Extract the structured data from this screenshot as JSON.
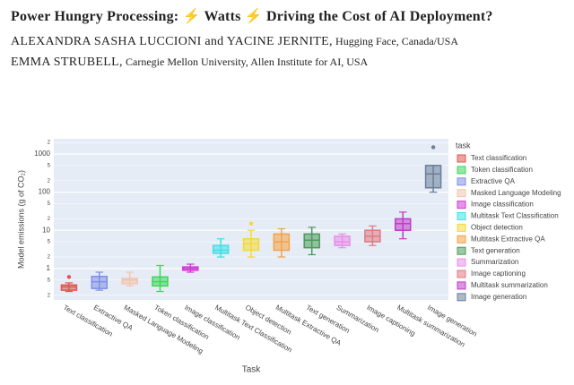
{
  "header": {
    "title": "Power Hungry Processing: ⚡ Watts ⚡ Driving the Cost of AI Deployment?",
    "authors": [
      {
        "names": "ALEXANDRA SASHA LUCCIONI and YACINE JERNITE,",
        "affiliation": "Hugging Face, Canada/USA"
      },
      {
        "names": "EMMA STRUBELL,",
        "affiliation": "Carnegie Mellon University, Allen Institute for AI, USA"
      }
    ]
  },
  "chart_data": {
    "type": "box",
    "x_label": "Task",
    "y_label": "Model emissions (g of CO₂)",
    "legend_title": "task",
    "y_scale": "log",
    "ylim": [
      0.15,
      2500
    ],
    "grid": true,
    "legend": "right",
    "yticks": [
      {
        "value": 0.2,
        "label": "2"
      },
      {
        "value": 0.5,
        "label": "5"
      },
      1,
      {
        "value": 2,
        "label": "2"
      },
      {
        "value": 5,
        "label": "5"
      },
      10,
      {
        "value": 20,
        "label": "2"
      },
      {
        "value": 50,
        "label": "5"
      },
      100,
      {
        "value": 200,
        "label": "2"
      },
      {
        "value": 500,
        "label": "5"
      },
      1000,
      {
        "value": 2000,
        "label": "2"
      }
    ],
    "categories": [
      "Text classification",
      "Extractive QA",
      "Masked Language Modeling",
      "Token classification",
      "Image classification",
      "Multitask Text Classification",
      "Object detection",
      "Multitask Extractive QA",
      "Text generation",
      "Summarization",
      "Image captioning",
      "Multitask summarization",
      "Image generation"
    ],
    "series": [
      {
        "name": "Text classification",
        "color": "#e0574f",
        "min": 0.25,
        "q1": 0.27,
        "median": 0.33,
        "q3": 0.37,
        "max": 0.42,
        "outliers": [
          0.6
        ]
      },
      {
        "name": "Token classification",
        "color": "#3fd65a",
        "min": 0.25,
        "q1": 0.35,
        "median": 0.45,
        "q3": 0.6,
        "max": 1.2,
        "outliers": []
      },
      {
        "name": "Extractive QA",
        "color": "#7f8fe6",
        "min": 0.27,
        "q1": 0.3,
        "median": 0.45,
        "q3": 0.62,
        "max": 0.8,
        "outliers": []
      },
      {
        "name": "Masked Language Modeling",
        "color": "#f4c4ae",
        "min": 0.35,
        "q1": 0.4,
        "median": 0.5,
        "q3": 0.55,
        "max": 0.8,
        "outliers": []
      },
      {
        "name": "Image classification",
        "color": "#d43ad4",
        "min": 0.8,
        "q1": 0.9,
        "median": 1.0,
        "q3": 1.1,
        "max": 1.3,
        "outliers": []
      },
      {
        "name": "Multitask Text Classification",
        "color": "#3fe0e6",
        "min": 2,
        "q1": 2.5,
        "median": 3,
        "q3": 4,
        "max": 6,
        "outliers": []
      },
      {
        "name": "Object detection",
        "color": "#f5d83a",
        "min": 2,
        "q1": 3,
        "median": 4.5,
        "q3": 6,
        "max": 10,
        "outliers": [
          15
        ]
      },
      {
        "name": "Multitask Extractive QA",
        "color": "#f5a244",
        "min": 2,
        "q1": 3,
        "median": 5,
        "q3": 8,
        "max": 11,
        "outliers": []
      },
      {
        "name": "Text generation",
        "color": "#4d9a5b",
        "min": 2.3,
        "q1": 3.5,
        "median": 5.5,
        "q3": 8,
        "max": 12,
        "outliers": []
      },
      {
        "name": "Summarization",
        "color": "#e890e8",
        "min": 3.5,
        "q1": 4,
        "median": 5,
        "q3": 7,
        "max": 8,
        "outliers": []
      },
      {
        "name": "Image captioning",
        "color": "#e07a84",
        "min": 4,
        "q1": 5,
        "median": 7,
        "q3": 10,
        "max": 13,
        "outliers": []
      },
      {
        "name": "Multitask summarization",
        "color": "#c03cc8",
        "min": 6,
        "q1": 10,
        "median": 15,
        "q3": 20,
        "max": 30,
        "outliers": []
      },
      {
        "name": "Image generation",
        "color": "#6b7f99",
        "min": 100,
        "q1": 130,
        "median": 300,
        "q3": 500,
        "max": 500,
        "outliers": [
          1500
        ]
      }
    ]
  }
}
